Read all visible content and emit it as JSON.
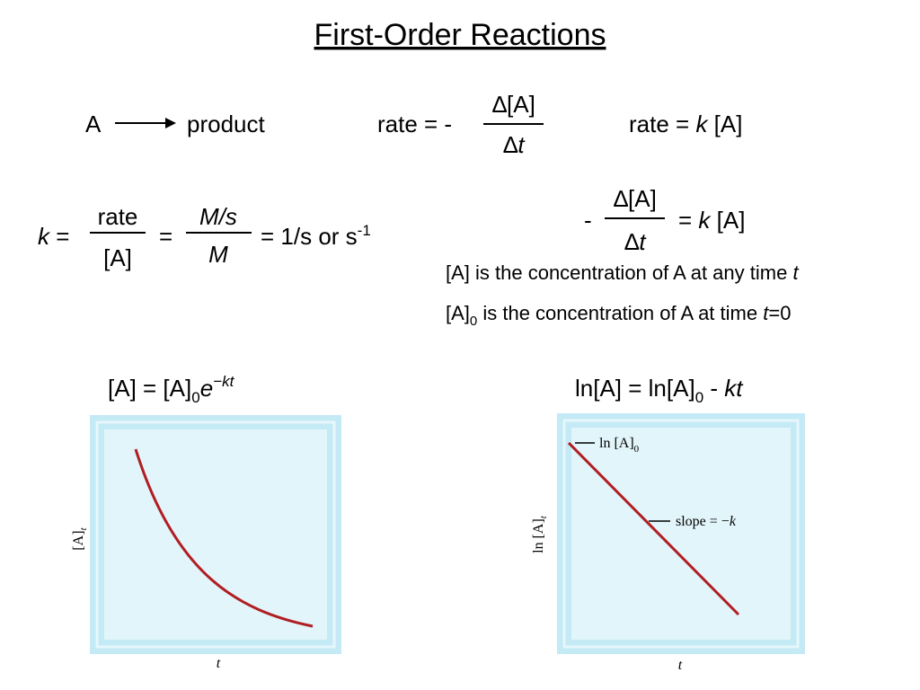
{
  "title": "First-Order Reactions",
  "reaction": {
    "reactant": "A",
    "product": "product"
  },
  "rate_definition": {
    "lhs": "rate = -",
    "numerator": "∆[A]",
    "denominator": [
      "∆",
      "t"
    ]
  },
  "rate_law": [
    "rate = ",
    "k",
    " [A]"
  ],
  "rate_constant": {
    "k": "k",
    "eq1": " =",
    "numerator1": "rate",
    "denominator1": "[A]",
    "eq2": "=",
    "numerator2": "M/s",
    "denominator2": "M",
    "rhs": "= 1/s or s",
    "superscript": "-1"
  },
  "differential_law": {
    "minus": "-",
    "numerator": "∆[A]",
    "denominator": [
      "∆",
      "t"
    ],
    "rhs": [
      "= ",
      "k",
      " [A]"
    ]
  },
  "definitions": [
    [
      "[A] is the concentration of A at any time ",
      "t"
    ],
    [
      "[A]",
      "0",
      " is the concentration of A at time ",
      "t",
      "=0"
    ]
  ],
  "integrated_exponential": [
    "[A] = [A]",
    "0",
    "e",
    "−kt"
  ],
  "integrated_log": [
    "ln[A] = ln[A]",
    "0",
    " - ",
    "kt"
  ],
  "graph_left": {
    "y_label": [
      "[A]",
      "t"
    ],
    "x_label": "t"
  },
  "graph_right": {
    "y_label": [
      "ln [A]",
      "t"
    ],
    "x_label": "t",
    "intercept_label": [
      "ln [A]",
      "0"
    ],
    "slope_label": [
      "slope = −",
      "k"
    ]
  }
}
